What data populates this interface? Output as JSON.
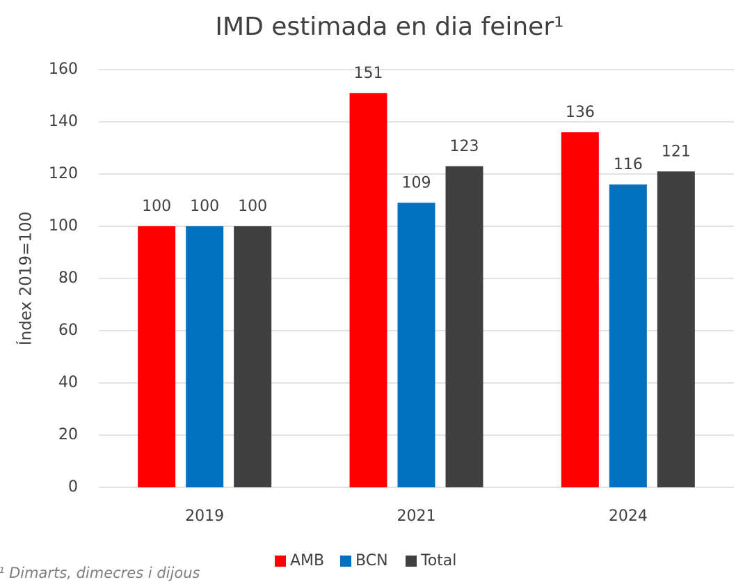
{
  "chart_data": {
    "type": "bar",
    "title": "IMD estimada en dia feiner¹",
    "y_label": "Índex 2019=100",
    "footnote": "¹ Dimarts, dimecres i dijous",
    "categories": [
      "2019",
      "2021",
      "2024"
    ],
    "series": [
      {
        "name": "AMB",
        "color": "#ff0000",
        "values": [
          100,
          151,
          136
        ]
      },
      {
        "name": "BCN",
        "color": "#0070c0",
        "values": [
          100,
          109,
          116
        ]
      },
      {
        "name": "Total",
        "color": "#404040",
        "values": [
          100,
          123,
          121
        ]
      }
    ],
    "ylim": [
      0,
      160
    ],
    "yticks": [
      0,
      20,
      40,
      60,
      80,
      100,
      120,
      140,
      160
    ],
    "grid": true,
    "legend": "bottom"
  }
}
